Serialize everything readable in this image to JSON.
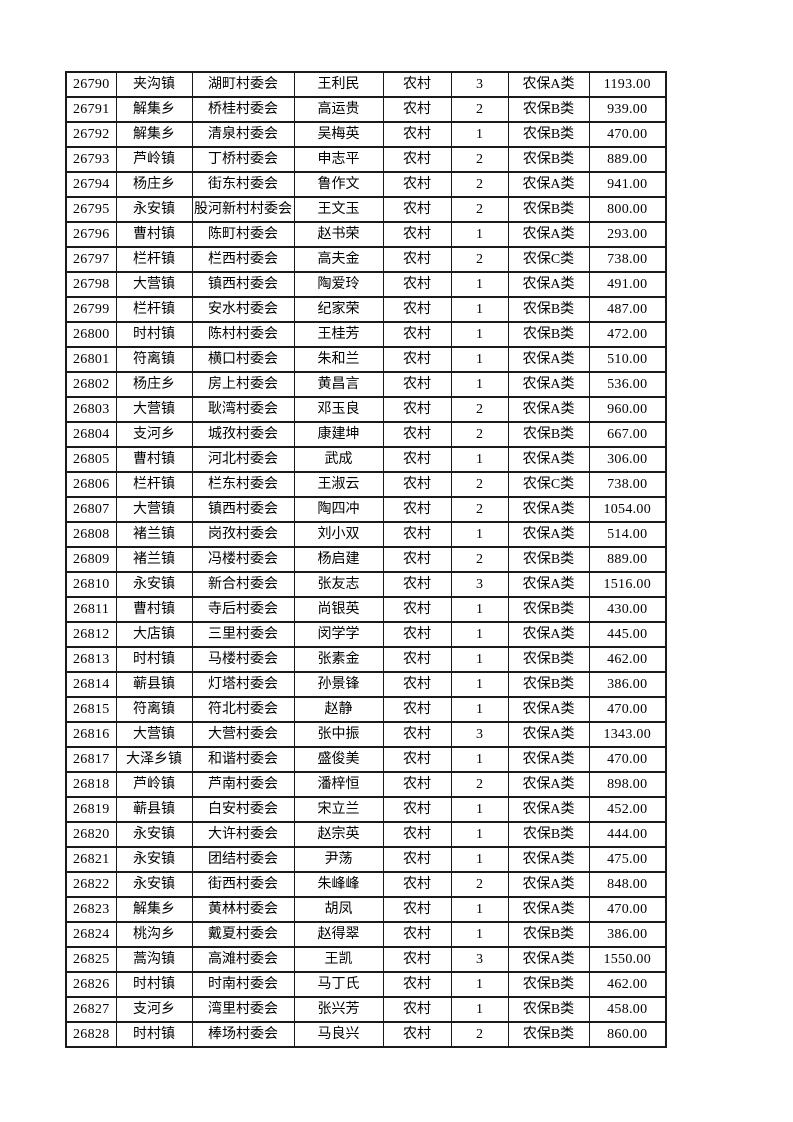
{
  "colors": {
    "border": "#1a1a1a",
    "text": "#000000",
    "page_background": "#ffffff"
  },
  "table": {
    "rows": [
      [
        "26790",
        "夹沟镇",
        "湖町村委会",
        "王利民",
        "农村",
        "3",
        "农保A类",
        "1193.00"
      ],
      [
        "26791",
        "解集乡",
        "桥桂村委会",
        "高运贵",
        "农村",
        "2",
        "农保B类",
        "939.00"
      ],
      [
        "26792",
        "解集乡",
        "清泉村委会",
        "吴梅英",
        "农村",
        "1",
        "农保B类",
        "470.00"
      ],
      [
        "26793",
        "芦岭镇",
        "丁桥村委会",
        "申志平",
        "农村",
        "2",
        "农保B类",
        "889.00"
      ],
      [
        "26794",
        "杨庄乡",
        "街东村委会",
        "鲁作文",
        "农村",
        "2",
        "农保A类",
        "941.00"
      ],
      [
        "26795",
        "永安镇",
        "股河新村村委会",
        "王文玉",
        "农村",
        "2",
        "农保B类",
        "800.00"
      ],
      [
        "26796",
        "曹村镇",
        "陈町村委会",
        "赵书荣",
        "农村",
        "1",
        "农保A类",
        "293.00"
      ],
      [
        "26797",
        "栏杆镇",
        "栏西村委会",
        "高夫金",
        "农村",
        "2",
        "农保C类",
        "738.00"
      ],
      [
        "26798",
        "大营镇",
        "镇西村委会",
        "陶爱玲",
        "农村",
        "1",
        "农保A类",
        "491.00"
      ],
      [
        "26799",
        "栏杆镇",
        "安水村委会",
        "纪家荣",
        "农村",
        "1",
        "农保B类",
        "487.00"
      ],
      [
        "26800",
        "时村镇",
        "陈村村委会",
        "王桂芳",
        "农村",
        "1",
        "农保B类",
        "472.00"
      ],
      [
        "26801",
        "符离镇",
        "横口村委会",
        "朱和兰",
        "农村",
        "1",
        "农保A类",
        "510.00"
      ],
      [
        "26802",
        "杨庄乡",
        "房上村委会",
        "黄昌言",
        "农村",
        "1",
        "农保A类",
        "536.00"
      ],
      [
        "26803",
        "大营镇",
        "耿湾村委会",
        "邓玉良",
        "农村",
        "2",
        "农保A类",
        "960.00"
      ],
      [
        "26804",
        "支河乡",
        "城孜村委会",
        "康建坤",
        "农村",
        "2",
        "农保B类",
        "667.00"
      ],
      [
        "26805",
        "曹村镇",
        "河北村委会",
        "武成",
        "农村",
        "1",
        "农保A类",
        "306.00"
      ],
      [
        "26806",
        "栏杆镇",
        "栏东村委会",
        "王淑云",
        "农村",
        "2",
        "农保C类",
        "738.00"
      ],
      [
        "26807",
        "大营镇",
        "镇西村委会",
        "陶四冲",
        "农村",
        "2",
        "农保A类",
        "1054.00"
      ],
      [
        "26808",
        "褚兰镇",
        "岗孜村委会",
        "刘小双",
        "农村",
        "1",
        "农保A类",
        "514.00"
      ],
      [
        "26809",
        "褚兰镇",
        "冯楼村委会",
        "杨启建",
        "农村",
        "2",
        "农保B类",
        "889.00"
      ],
      [
        "26810",
        "永安镇",
        "新合村委会",
        "张友志",
        "农村",
        "3",
        "农保A类",
        "1516.00"
      ],
      [
        "26811",
        "曹村镇",
        "寺后村委会",
        "尚银英",
        "农村",
        "1",
        "农保B类",
        "430.00"
      ],
      [
        "26812",
        "大店镇",
        "三里村委会",
        "闵学学",
        "农村",
        "1",
        "农保A类",
        "445.00"
      ],
      [
        "26813",
        "时村镇",
        "马楼村委会",
        "张素金",
        "农村",
        "1",
        "农保B类",
        "462.00"
      ],
      [
        "26814",
        "蕲县镇",
        "灯塔村委会",
        "孙景锋",
        "农村",
        "1",
        "农保B类",
        "386.00"
      ],
      [
        "26815",
        "符离镇",
        "符北村委会",
        "赵静",
        "农村",
        "1",
        "农保A类",
        "470.00"
      ],
      [
        "26816",
        "大营镇",
        "大营村委会",
        "张中振",
        "农村",
        "3",
        "农保A类",
        "1343.00"
      ],
      [
        "26817",
        "大泽乡镇",
        "和谐村委会",
        "盛俊美",
        "农村",
        "1",
        "农保A类",
        "470.00"
      ],
      [
        "26818",
        "芦岭镇",
        "芦南村委会",
        "潘梓恒",
        "农村",
        "2",
        "农保A类",
        "898.00"
      ],
      [
        "26819",
        "蕲县镇",
        "白安村委会",
        "宋立兰",
        "农村",
        "1",
        "农保A类",
        "452.00"
      ],
      [
        "26820",
        "永安镇",
        "大许村委会",
        "赵宗英",
        "农村",
        "1",
        "农保B类",
        "444.00"
      ],
      [
        "26821",
        "永安镇",
        "团结村委会",
        "尹荡",
        "农村",
        "1",
        "农保A类",
        "475.00"
      ],
      [
        "26822",
        "永安镇",
        "街西村委会",
        "朱峰峰",
        "农村",
        "2",
        "农保A类",
        "848.00"
      ],
      [
        "26823",
        "解集乡",
        "黄林村委会",
        "胡凤",
        "农村",
        "1",
        "农保A类",
        "470.00"
      ],
      [
        "26824",
        "桃沟乡",
        "戴夏村委会",
        "赵得翠",
        "农村",
        "1",
        "农保B类",
        "386.00"
      ],
      [
        "26825",
        "蒿沟镇",
        "高滩村委会",
        "王凯",
        "农村",
        "3",
        "农保A类",
        "1550.00"
      ],
      [
        "26826",
        "时村镇",
        "时南村委会",
        "马丁氏",
        "农村",
        "1",
        "农保B类",
        "462.00"
      ],
      [
        "26827",
        "支河乡",
        "湾里村委会",
        "张兴芳",
        "农村",
        "1",
        "农保B类",
        "458.00"
      ],
      [
        "26828",
        "时村镇",
        "棒场村委会",
        "马良兴",
        "农村",
        "2",
        "农保B类",
        "860.00"
      ]
    ]
  }
}
